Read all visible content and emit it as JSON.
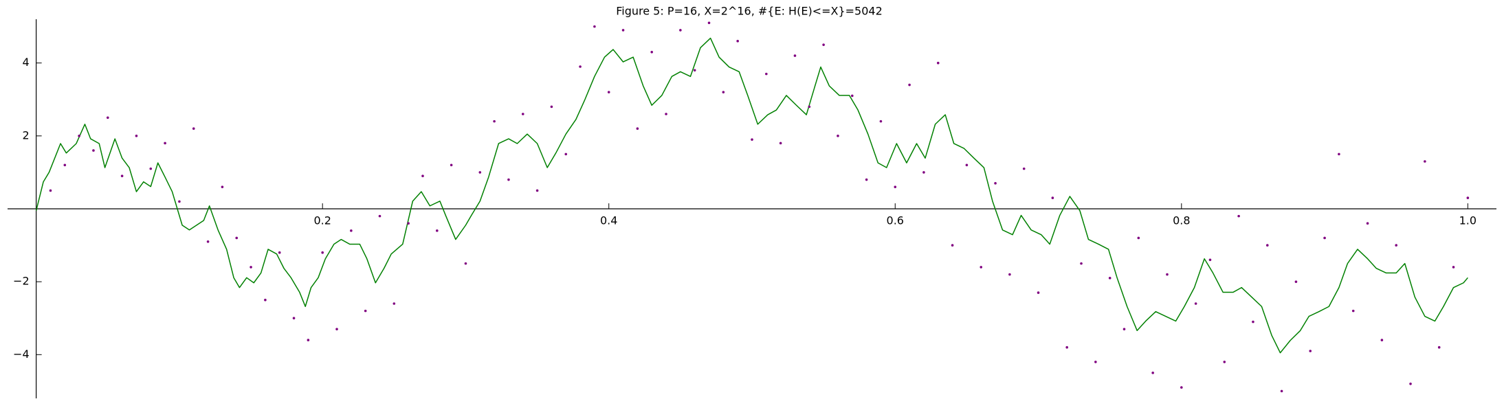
{
  "chart_data": {
    "type": "line",
    "title": "Figure 5: P=16, X=2^16, #{E: H(E)<=X}=5042",
    "xlim": [
      -0.02,
      1.02
    ],
    "ylim": [
      -5.2,
      5.2
    ],
    "xticks": [
      0.2,
      0.4,
      0.6,
      0.8,
      {
        "value": 1,
        "label": "1.0"
      }
    ],
    "yticks": [
      {
        "value": -4,
        "label": "−4"
      },
      {
        "value": -2,
        "label": "−2"
      },
      2,
      4
    ],
    "series": [
      {
        "type": "line",
        "color": "#008000",
        "x": [
          0,
          0.005,
          0.009,
          0.017,
          0.021,
          0.028,
          0.034,
          0.038,
          0.044,
          0.048,
          0.055,
          0.06,
          0.065,
          0.07,
          0.075,
          0.08,
          0.085,
          0.09,
          0.095,
          0.102,
          0.107,
          0.112,
          0.117,
          0.121,
          0.127,
          0.133,
          0.138,
          0.142,
          0.147,
          0.152,
          0.157,
          0.162,
          0.168,
          0.173,
          0.178,
          0.184,
          0.188,
          0.192,
          0.197,
          0.202,
          0.208,
          0.213,
          0.219,
          0.226,
          0.231,
          0.237,
          0.243,
          0.248,
          0.256,
          0.263,
          0.269,
          0.275,
          0.282,
          0.286,
          0.293,
          0.3,
          0.304,
          0.31,
          0.316,
          0.323,
          0.33,
          0.336,
          0.343,
          0.35,
          0.357,
          0.363,
          0.37,
          0.377,
          0.383,
          0.39,
          0.397,
          0.403,
          0.41,
          0.417,
          0.424,
          0.43,
          0.437,
          0.444,
          0.45,
          0.457,
          0.464,
          0.471,
          0.477,
          0.484,
          0.491,
          0.497,
          0.504,
          0.511,
          0.517,
          0.524,
          0.531,
          0.538,
          0.544,
          0.548,
          0.554,
          0.561,
          0.568,
          0.574,
          0.581,
          0.588,
          0.594,
          0.601,
          0.608,
          0.615,
          0.621,
          0.628,
          0.635,
          0.641,
          0.648,
          0.655,
          0.662,
          0.668,
          0.675,
          0.682,
          0.688,
          0.695,
          0.702,
          0.708,
          0.715,
          0.722,
          0.729,
          0.735,
          0.742,
          0.749,
          0.755,
          0.762,
          0.769,
          0.775,
          0.782,
          0.789,
          0.796,
          0.802,
          0.809,
          0.816,
          0.822,
          0.829,
          0.836,
          0.842,
          0.849,
          0.856,
          0.863,
          0.869,
          0.876,
          0.883,
          0.889,
          0.896,
          0.903,
          0.91,
          0.916,
          0.923,
          0.93,
          0.936,
          0.943,
          0.95,
          0.956,
          0.963,
          0.97,
          0.977,
          0.983,
          0.99,
          0.997,
          1.0
        ],
        "values": [
          -0.05,
          0.74,
          1.0,
          1.79,
          1.53,
          1.79,
          2.32,
          1.92,
          1.79,
          1.13,
          1.92,
          1.39,
          1.13,
          0.47,
          0.74,
          0.61,
          1.26,
          0.87,
          0.47,
          -0.45,
          -0.58,
          -0.45,
          -0.32,
          0.08,
          -0.58,
          -1.11,
          -1.89,
          -2.16,
          -1.89,
          -2.03,
          -1.76,
          -1.11,
          -1.24,
          -1.63,
          -1.89,
          -2.29,
          -2.68,
          -2.16,
          -1.89,
          -1.37,
          -0.97,
          -0.84,
          -0.97,
          -0.97,
          -1.37,
          -2.03,
          -1.63,
          -1.24,
          -0.97,
          0.21,
          0.47,
          0.08,
          0.21,
          -0.18,
          -0.84,
          -0.45,
          -0.18,
          0.21,
          0.87,
          1.79,
          1.92,
          1.79,
          2.05,
          1.79,
          1.13,
          1.53,
          2.05,
          2.45,
          2.97,
          3.63,
          4.16,
          4.37,
          4.03,
          4.16,
          3.37,
          2.84,
          3.11,
          3.63,
          3.76,
          3.63,
          4.42,
          4.68,
          4.16,
          3.89,
          3.76,
          3.11,
          2.32,
          2.58,
          2.71,
          3.11,
          2.84,
          2.58,
          3.37,
          3.89,
          3.37,
          3.11,
          3.11,
          2.71,
          2.05,
          1.26,
          1.13,
          1.79,
          1.26,
          1.79,
          1.39,
          2.32,
          2.58,
          1.79,
          1.66,
          1.39,
          1.13,
          0.21,
          -0.58,
          -0.71,
          -0.18,
          -0.58,
          -0.71,
          -0.97,
          -0.18,
          0.34,
          -0.05,
          -0.84,
          -0.97,
          -1.11,
          -1.89,
          -2.68,
          -3.34,
          -3.08,
          -2.82,
          -2.95,
          -3.08,
          -2.68,
          -2.16,
          -1.37,
          -1.76,
          -2.29,
          -2.29,
          -2.16,
          -2.42,
          -2.68,
          -3.47,
          -3.95,
          -3.61,
          -3.34,
          -2.95,
          -2.82,
          -2.68,
          -2.16,
          -1.5,
          -1.11,
          -1.37,
          -1.63,
          -1.76,
          -1.76,
          -1.5,
          -2.42,
          -2.95,
          -3.08,
          -2.68,
          -2.16,
          -2.03,
          -1.89
        ]
      },
      {
        "type": "scatter",
        "color": "#800080",
        "x": [
          0.01,
          0.02,
          0.03,
          0.04,
          0.05,
          0.06,
          0.07,
          0.08,
          0.09,
          0.1,
          0.11,
          0.12,
          0.13,
          0.14,
          0.15,
          0.16,
          0.17,
          0.18,
          0.19,
          0.2,
          0.21,
          0.22,
          0.23,
          0.24,
          0.25,
          0.26,
          0.27,
          0.28,
          0.29,
          0.3,
          0.31,
          0.32,
          0.33,
          0.34,
          0.35,
          0.36,
          0.37,
          0.38,
          0.39,
          0.4,
          0.41,
          0.42,
          0.43,
          0.44,
          0.45,
          0.46,
          0.47,
          0.48,
          0.49,
          0.5,
          0.51,
          0.52,
          0.53,
          0.54,
          0.55,
          0.56,
          0.57,
          0.58,
          0.59,
          0.6,
          0.61,
          0.62,
          0.63,
          0.64,
          0.65,
          0.66,
          0.67,
          0.68,
          0.69,
          0.7,
          0.71,
          0.72,
          0.73,
          0.74,
          0.75,
          0.76,
          0.77,
          0.78,
          0.79,
          0.8,
          0.81,
          0.82,
          0.83,
          0.84,
          0.85,
          0.86,
          0.87,
          0.88,
          0.89,
          0.9,
          0.91,
          0.92,
          0.93,
          0.94,
          0.95,
          0.96,
          0.97,
          0.98,
          0.99,
          1.0
        ],
        "values": [
          0.5,
          1.2,
          2.0,
          1.6,
          2.5,
          0.9,
          2.0,
          1.1,
          1.8,
          0.2,
          2.2,
          -0.9,
          0.6,
          -0.8,
          -1.6,
          -2.5,
          -1.2,
          -3.0,
          -3.6,
          -1.2,
          -3.3,
          -0.6,
          -2.8,
          -0.2,
          -2.6,
          -0.4,
          0.9,
          -0.6,
          1.2,
          -1.5,
          1.0,
          2.4,
          0.8,
          2.6,
          0.5,
          2.8,
          1.5,
          3.9,
          5.0,
          3.2,
          4.9,
          2.2,
          4.3,
          2.6,
          4.9,
          3.8,
          5.1,
          3.2,
          4.6,
          1.9,
          3.7,
          1.8,
          4.2,
          2.8,
          4.5,
          2.0,
          3.1,
          0.8,
          2.4,
          0.6,
          3.4,
          1.0,
          4.0,
          -1.0,
          1.2,
          -1.6,
          0.7,
          -1.8,
          1.1,
          -2.3,
          0.3,
          -3.8,
          -1.5,
          -4.2,
          -1.9,
          -3.3,
          -0.8,
          -4.5,
          -1.8,
          -4.9,
          -2.6,
          -1.4,
          -4.2,
          -0.2,
          -3.1,
          -1.0,
          -5.0,
          -2.0,
          -3.9,
          -0.8,
          1.5,
          -2.8,
          -0.4,
          -3.6,
          -1.0,
          -4.8,
          1.3,
          -3.8,
          -1.6,
          0.3
        ]
      }
    ]
  }
}
